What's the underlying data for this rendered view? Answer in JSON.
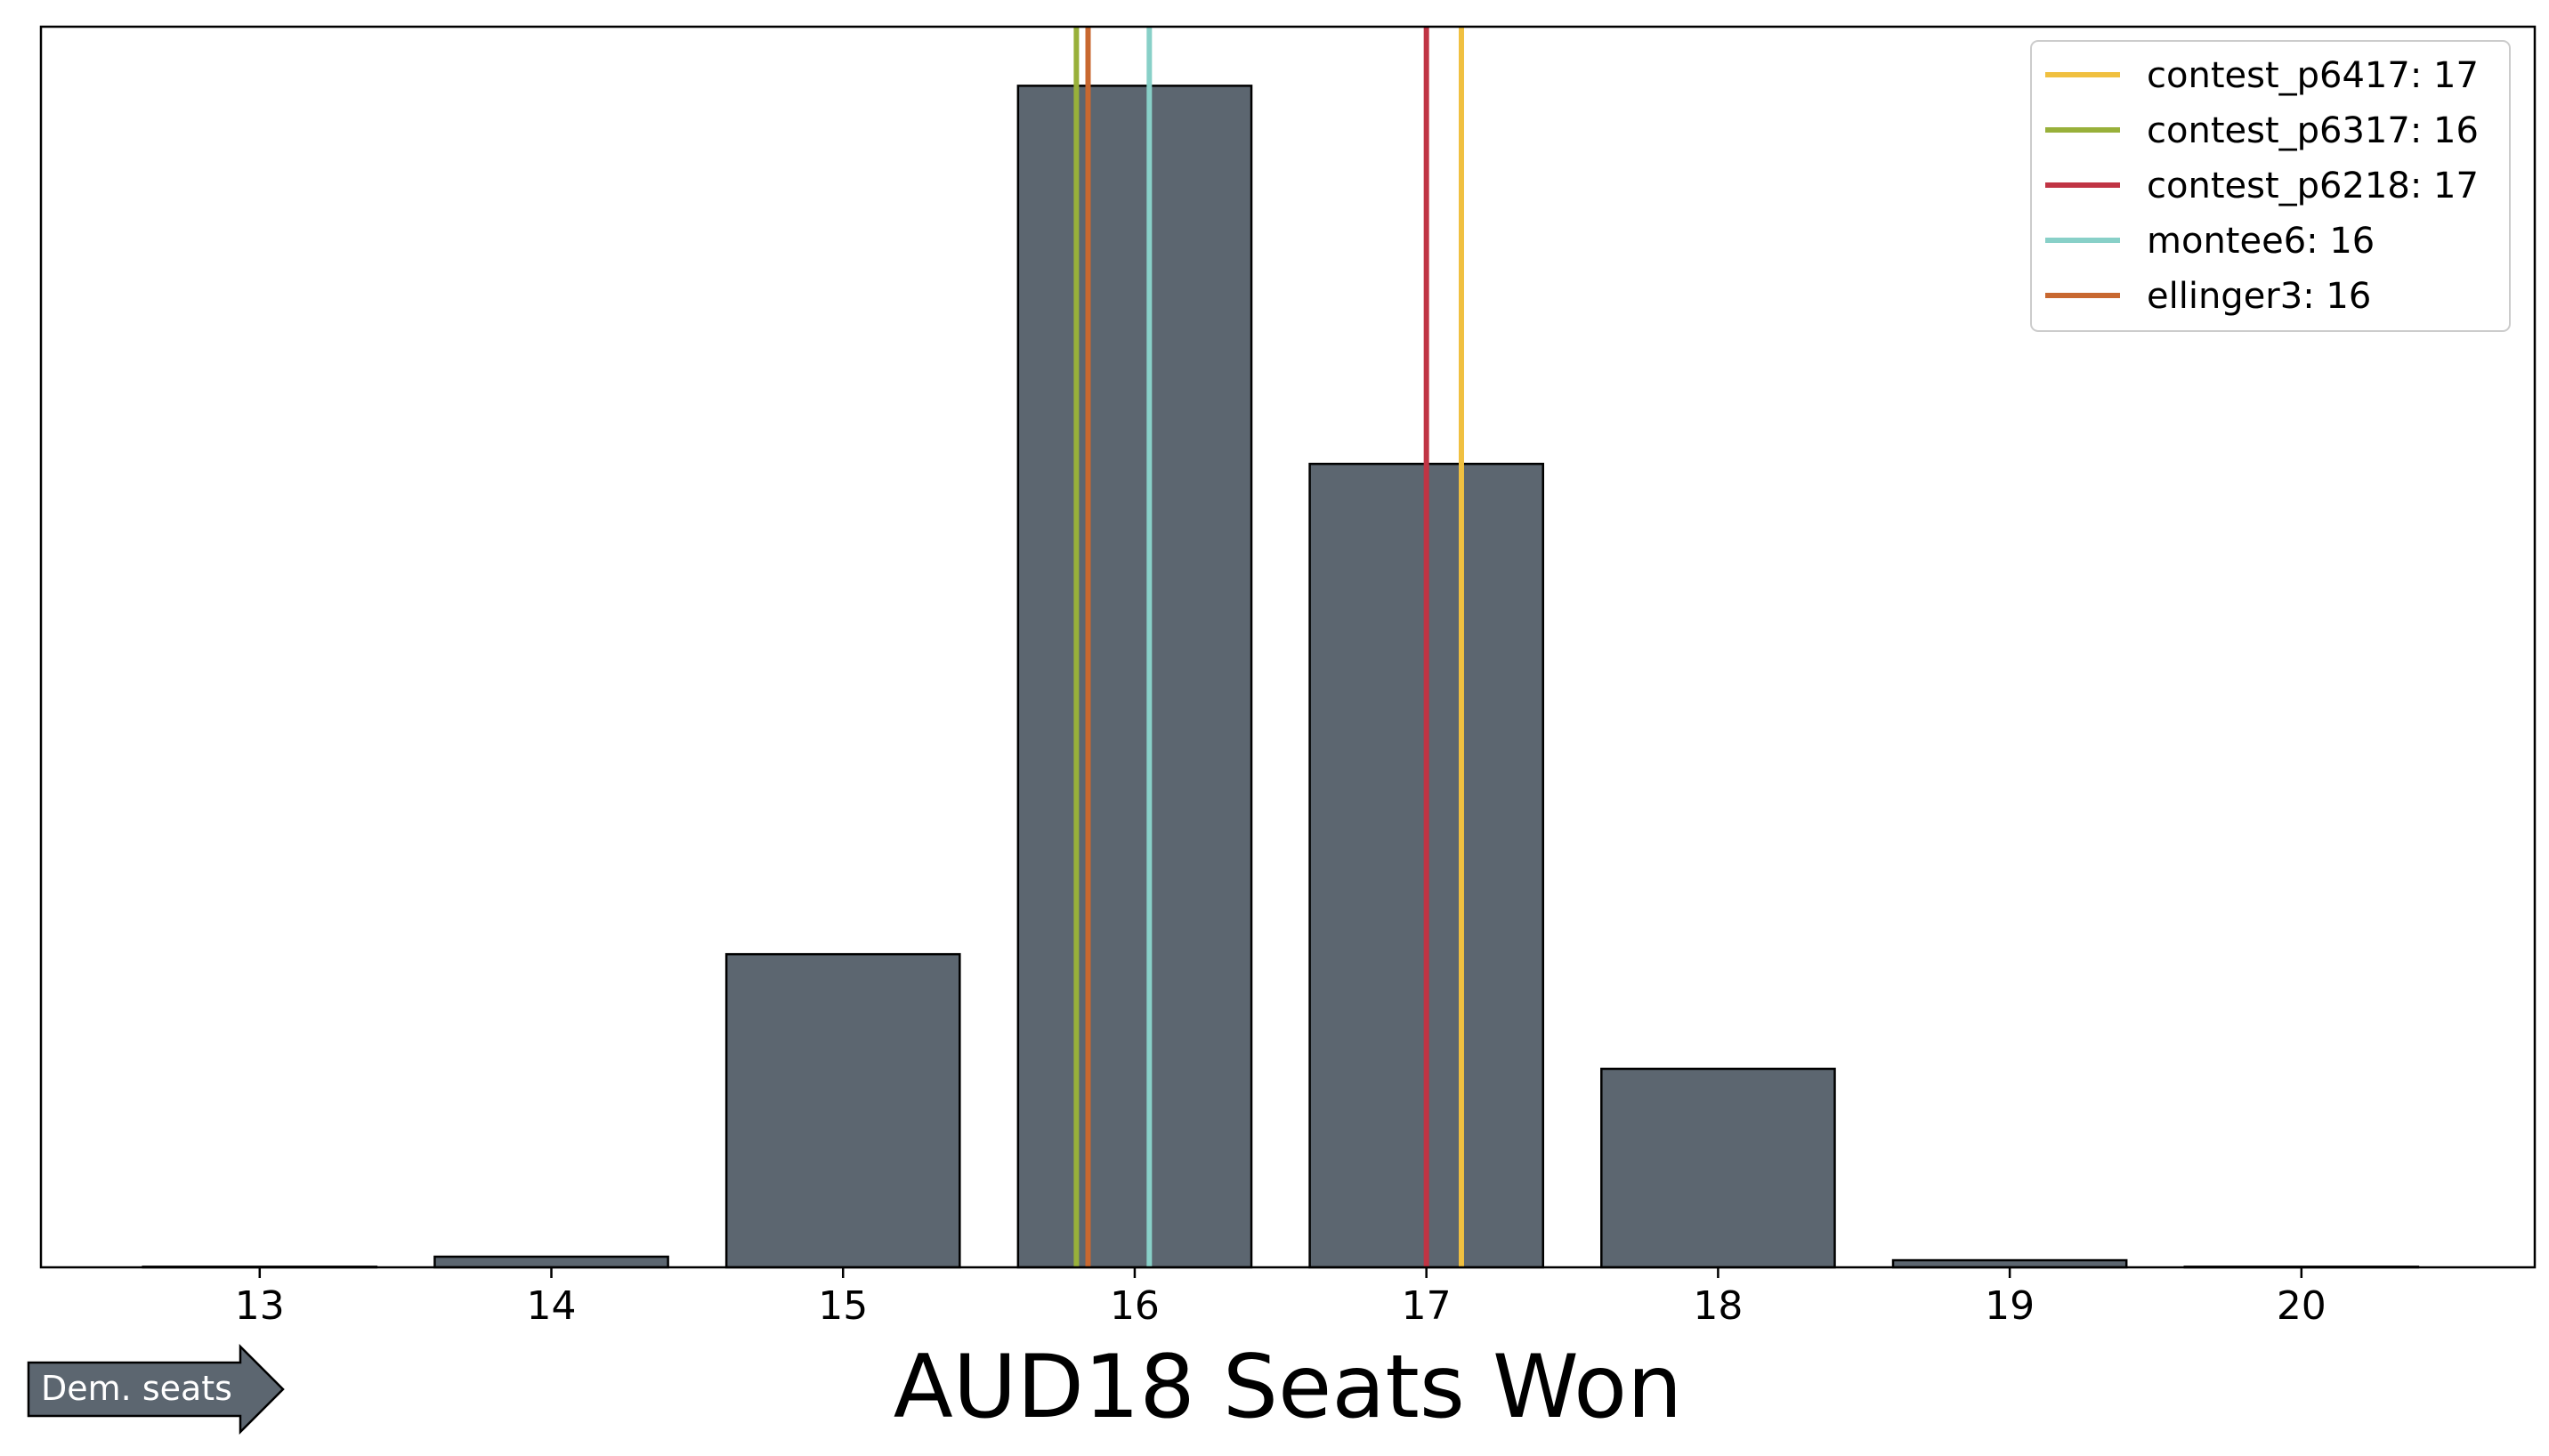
{
  "chart_data": {
    "type": "bar",
    "title": "",
    "xlabel": "AUD18 Seats Won",
    "ylabel": "",
    "categories": [
      "13",
      "14",
      "15",
      "16",
      "17",
      "18",
      "19",
      "20"
    ],
    "x": [
      13,
      14,
      15,
      16,
      17,
      18,
      19,
      20
    ],
    "values": [
      0.05,
      0.9,
      26.5,
      100,
      68,
      16.8,
      0.6,
      0.05
    ],
    "xlim": [
      12.25,
      20.8
    ],
    "ylim": [
      0,
      105
    ],
    "yticks_visible": false,
    "grid": false,
    "bar_color": "#5c6670",
    "vlines": [
      {
        "name": "contest_p6417",
        "seats": 17,
        "x": 17.12,
        "color": "#f0c040",
        "legend": "contest_p6417: 17"
      },
      {
        "name": "contest_p6317",
        "seats": 16,
        "x": 15.8,
        "color": "#98b03a",
        "legend": "contest_p6317: 16"
      },
      {
        "name": "contest_p6218",
        "seats": 17,
        "x": 17.0,
        "color": "#c03444",
        "legend": "contest_p6218: 17"
      },
      {
        "name": "montee6",
        "seats": 16,
        "x": 16.05,
        "color": "#88d0c8",
        "legend": "montee6: 16"
      },
      {
        "name": "ellinger3",
        "seats": 16,
        "x": 15.84,
        "color": "#c86830",
        "legend": "ellinger3: 16"
      }
    ],
    "legend_position": "top-right",
    "annotation": "Dem. seats"
  }
}
